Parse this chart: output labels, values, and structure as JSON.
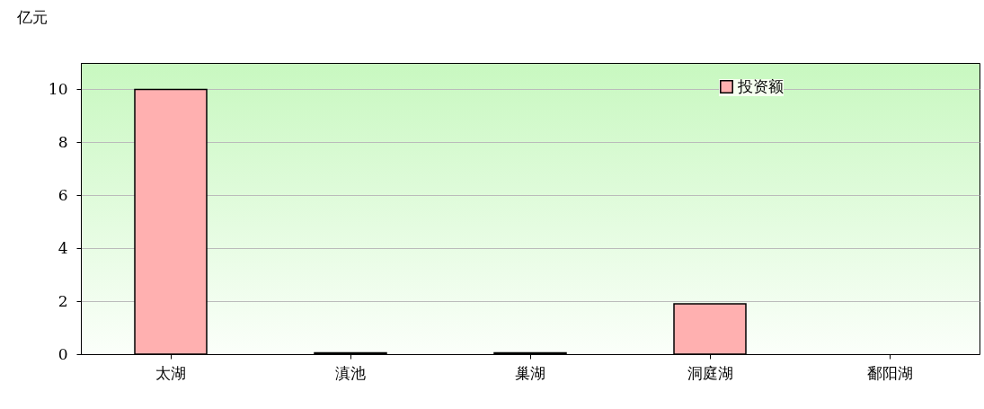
{
  "chart_data": {
    "type": "bar",
    "ylabel": "亿元",
    "categories": [
      "太湖",
      "滇池",
      "巢湖",
      "洞庭湖",
      "鄱阳湖"
    ],
    "series": [
      {
        "name": "投资额",
        "color": "#ffb0b0",
        "values": [
          10,
          0.05,
          0.05,
          1.9,
          null
        ]
      }
    ],
    "ylim": [
      0,
      11
    ],
    "yticks": [
      0,
      2,
      4,
      6,
      8,
      10
    ],
    "grid": "y",
    "legend": "top right"
  }
}
